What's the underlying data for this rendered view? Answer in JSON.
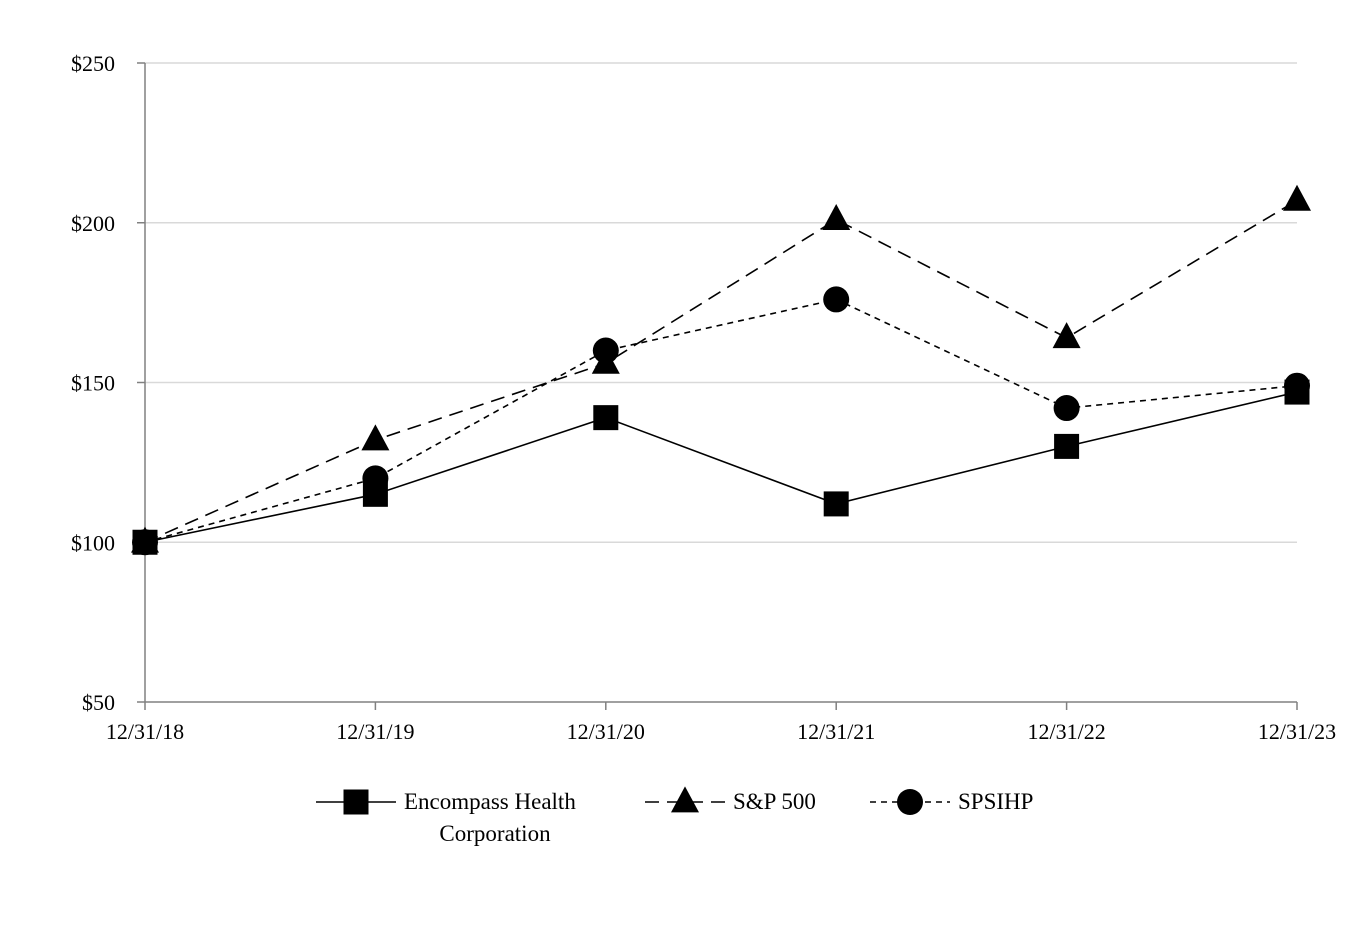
{
  "chart_data": {
    "type": "line",
    "categories": [
      "12/31/18",
      "12/31/19",
      "12/31/20",
      "12/31/21",
      "12/31/22",
      "12/31/23"
    ],
    "y_ticks": [
      "$50",
      "$100",
      "$150",
      "$200",
      "$250"
    ],
    "y_tick_values": [
      50,
      100,
      150,
      200,
      250
    ],
    "ylim": [
      50,
      250
    ],
    "grid": "horizontal",
    "legend_position": "bottom",
    "series": [
      {
        "name_lines": [
          "Encompass Health",
          "Corporation"
        ],
        "marker": "square",
        "dash": "solid",
        "values": [
          100,
          115,
          139,
          112,
          130,
          147
        ]
      },
      {
        "name_lines": [
          "S&P 500"
        ],
        "marker": "triangle",
        "dash": "long-dash",
        "values": [
          100,
          132,
          156,
          201,
          164,
          207
        ]
      },
      {
        "name_lines": [
          "SPSIHP"
        ],
        "marker": "circle",
        "dash": "short-dash",
        "values": [
          100,
          120,
          160,
          176,
          142,
          149
        ]
      }
    ]
  }
}
